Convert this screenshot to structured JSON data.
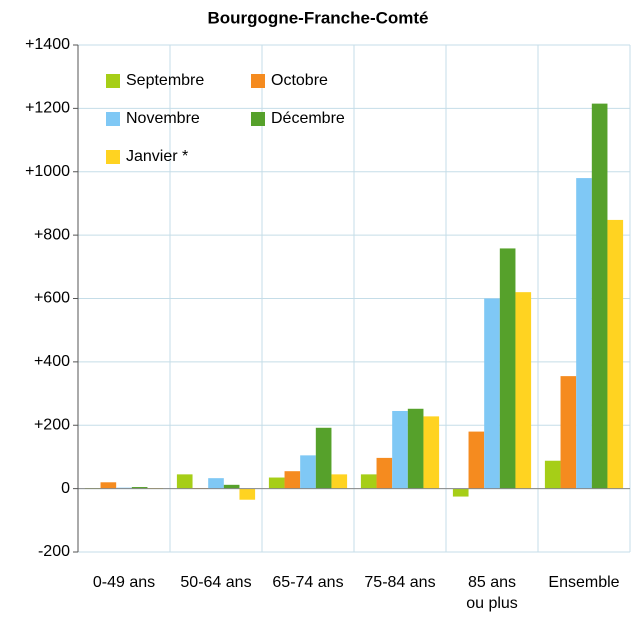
{
  "chart_data": {
    "type": "bar",
    "title": "Bourgogne-Franche-Comté",
    "categories": [
      "0-49 ans",
      "50-64 ans",
      "65-74 ans",
      "75-84 ans",
      "85 ans\nou plus",
      "Ensemble"
    ],
    "series": [
      {
        "name": "Septembre",
        "color": "#a6ce17",
        "values": [
          2,
          45,
          35,
          45,
          -25,
          88
        ]
      },
      {
        "name": "Octobre",
        "color": "#f58b1f",
        "values": [
          20,
          2,
          55,
          97,
          180,
          355
        ]
      },
      {
        "name": "Novembre",
        "color": "#7fc8f5",
        "values": [
          3,
          33,
          105,
          245,
          600,
          980
        ]
      },
      {
        "name": "Décembre",
        "color": "#56a12b",
        "values": [
          5,
          12,
          192,
          252,
          758,
          1215
        ]
      },
      {
        "name": "Janvier *",
        "color": "#ffd321",
        "values": [
          2,
          -35,
          45,
          228,
          620,
          848
        ]
      }
    ],
    "ylim": [
      -200,
      1400
    ],
    "yticks": [
      -200,
      0,
      {
        "value": 200,
        "label": "+200"
      },
      {
        "value": 400,
        "label": "+400"
      },
      {
        "value": 600,
        "label": "+600"
      },
      {
        "value": 800,
        "label": "+800"
      },
      {
        "value": 1000,
        "label": "+1000"
      },
      {
        "value": 1200,
        "label": "+1200"
      },
      {
        "value": 1400,
        "label": "+1400"
      }
    ],
    "grid": true,
    "legend": "upper left"
  }
}
